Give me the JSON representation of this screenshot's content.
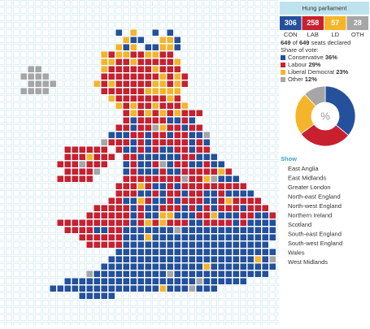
{
  "sidebar": {
    "result": "Hung parliament",
    "seats": [
      {
        "party": "CON",
        "seats": 306,
        "color": "#24509c"
      },
      {
        "party": "LAB",
        "seats": 258,
        "color": "#c8202f"
      },
      {
        "party": "LD",
        "seats": 57,
        "color": "#f5b52a"
      },
      {
        "party": "OTH",
        "seats": 28,
        "color": "#a6a6a6"
      }
    ],
    "declared": {
      "declared": 649,
      "of": "of",
      "total": 649,
      "suffix": "seats declared"
    },
    "share_heading": "Share of vote:",
    "vote_share": [
      {
        "name": "Conservative",
        "value": 36,
        "label": "36%",
        "color": "#24509c"
      },
      {
        "name": "Labour",
        "value": 29,
        "label": "29%",
        "color": "#c8202f"
      },
      {
        "name": "Liberal Democrat",
        "value": 23,
        "label": "23%",
        "color": "#f5b52a"
      },
      {
        "name": "Other",
        "value": 12,
        "label": "12%",
        "color": "#a6a6a6"
      }
    ],
    "donut_center": "%",
    "show_heading": "Show",
    "regions": [
      "East Anglia",
      "East Midlands",
      "Greater London",
      "North-east England",
      "North-west England",
      "Northern Ireland",
      "Scotland",
      "South-east England",
      "South-west England",
      "Wales",
      "West Midlands"
    ]
  }
}
